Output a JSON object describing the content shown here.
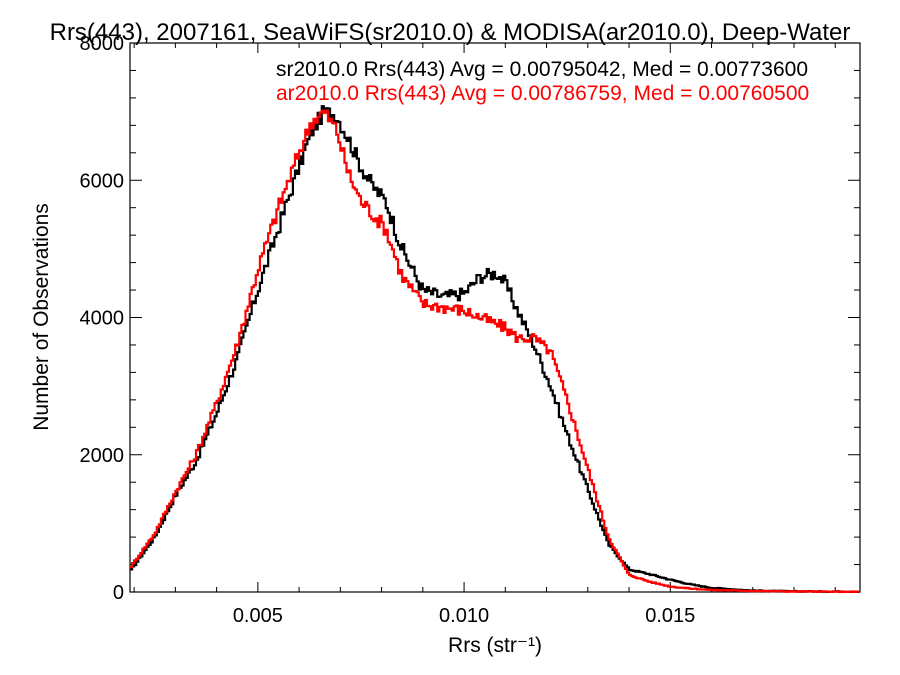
{
  "chart_data": {
    "type": "line",
    "title": "Rrs(443), 2007161, SeaWiFS(sr2010.0) & MODISA(ar2010.0), Deep-Water",
    "xlabel": "Rrs (str⁻¹)",
    "ylabel": "Number of Observations",
    "xlim": [
      0.0019,
      0.0196
    ],
    "ylim": [
      0,
      8000
    ],
    "xticks": [
      0.005,
      0.01,
      0.015
    ],
    "xtick_labels": [
      "0.005",
      "0.010",
      "0.015"
    ],
    "yticks": [
      0,
      2000,
      4000,
      6000,
      8000
    ],
    "ytick_labels": [
      "0",
      "2000",
      "4000",
      "6000",
      "8000"
    ],
    "grid": false,
    "legend_position": "top",
    "annotations": [
      {
        "text": "sr2010.0 Rrs(443) Avg = 0.00795042, Med = 0.00773600",
        "color": "#000000"
      },
      {
        "text": "ar2010.0 Rrs(443) Avg = 0.00786759, Med = 0.00760500",
        "color": "#ff0000"
      }
    ],
    "series": [
      {
        "color": "#000000",
        "x": [
          0.0019,
          0.0025,
          0.003,
          0.0035,
          0.004,
          0.0045,
          0.005,
          0.0055,
          0.006,
          0.0063,
          0.0066,
          0.0069,
          0.0072,
          0.0075,
          0.0078,
          0.0081,
          0.0085,
          0.009,
          0.0095,
          0.01,
          0.0104,
          0.0108,
          0.011,
          0.0113,
          0.0117,
          0.0121,
          0.0125,
          0.013,
          0.0135,
          0.014,
          0.0145,
          0.015,
          0.0155,
          0.016,
          0.017,
          0.018,
          0.0196
        ],
        "y": [
          300,
          800,
          1400,
          1900,
          2600,
          3400,
          4400,
          5300,
          6200,
          6700,
          7000,
          6950,
          6600,
          6200,
          5900,
          5700,
          5000,
          4400,
          4300,
          4350,
          4600,
          4650,
          4500,
          4100,
          3600,
          3000,
          2300,
          1500,
          700,
          330,
          260,
          180,
          110,
          60,
          20,
          10,
          5
        ]
      },
      {
        "color": "#ff0000",
        "x": [
          0.0019,
          0.0025,
          0.003,
          0.0035,
          0.004,
          0.0045,
          0.005,
          0.0055,
          0.006,
          0.0063,
          0.0066,
          0.0069,
          0.0072,
          0.0075,
          0.0078,
          0.0081,
          0.0085,
          0.009,
          0.0095,
          0.01,
          0.0104,
          0.0108,
          0.011,
          0.0113,
          0.0117,
          0.0121,
          0.0125,
          0.013,
          0.0135,
          0.014,
          0.0145,
          0.015,
          0.0155,
          0.016,
          0.017,
          0.018,
          0.0196
        ],
        "y": [
          350,
          850,
          1450,
          2000,
          2750,
          3600,
          4700,
          5600,
          6400,
          6850,
          7000,
          6750,
          6100,
          5700,
          5500,
          5300,
          4600,
          4200,
          4150,
          4100,
          4000,
          3900,
          3850,
          3700,
          3700,
          3500,
          2800,
          1800,
          800,
          250,
          150,
          80,
          50,
          30,
          15,
          8,
          3
        ]
      }
    ]
  }
}
